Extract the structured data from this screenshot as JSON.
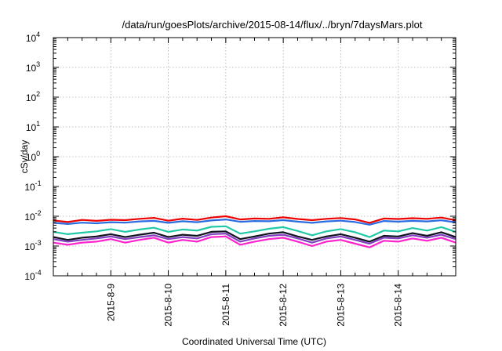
{
  "chart_data": {
    "type": "line",
    "title": "/data/run/goesPlots/archive/2015-08-14/flux/../bryn/7daysMars.plot",
    "xlabel": "Coordinated Universal Time (UTC)",
    "ylabel": "cSv/day",
    "y_scale": "log",
    "ylim": [
      0.0001,
      10000
    ],
    "y_ticks": [
      {
        "base": "10",
        "exp": "-4"
      },
      {
        "base": "10",
        "exp": "-3"
      },
      {
        "base": "10",
        "exp": "-2"
      },
      {
        "base": "10",
        "exp": "-1"
      },
      {
        "base": "10",
        "exp": "0"
      },
      {
        "base": "10",
        "exp": "1"
      },
      {
        "base": "10",
        "exp": "2"
      },
      {
        "base": "10",
        "exp": "3"
      },
      {
        "base": "10",
        "exp": "4"
      }
    ],
    "xlim": [
      "2015-08-08",
      "2015-08-15"
    ],
    "x_ticks": [
      "2015-8-9",
      "2015-8-10",
      "2015-8-11",
      "2015-8-12",
      "2015-8-13",
      "2015-8-14"
    ],
    "grid": true,
    "legend": "none",
    "x": [
      "2015-08-08 00:00",
      "2015-08-08 06:00",
      "2015-08-08 12:00",
      "2015-08-08 18:00",
      "2015-08-09 00:00",
      "2015-08-09 06:00",
      "2015-08-09 12:00",
      "2015-08-09 18:00",
      "2015-08-10 00:00",
      "2015-08-10 06:00",
      "2015-08-10 12:00",
      "2015-08-10 18:00",
      "2015-08-11 00:00",
      "2015-08-11 06:00",
      "2015-08-11 12:00",
      "2015-08-11 18:00",
      "2015-08-12 00:00",
      "2015-08-12 06:00",
      "2015-08-12 12:00",
      "2015-08-12 18:00",
      "2015-08-13 00:00",
      "2015-08-13 06:00",
      "2015-08-13 12:00",
      "2015-08-13 18:00",
      "2015-08-14 00:00",
      "2015-08-14 06:00",
      "2015-08-14 12:00",
      "2015-08-14 18:00",
      "2015-08-15 00:00"
    ],
    "series": [
      {
        "color": "#ee0000",
        "values": [
          0.0072,
          0.0064,
          0.0075,
          0.007,
          0.0076,
          0.0074,
          0.0082,
          0.0088,
          0.0071,
          0.0083,
          0.0075,
          0.009,
          0.01,
          0.0078,
          0.0084,
          0.0082,
          0.0092,
          0.0081,
          0.0074,
          0.0082,
          0.0087,
          0.0078,
          0.006,
          0.0084,
          0.0081,
          0.0086,
          0.0082,
          0.009,
          0.0073
        ]
      },
      {
        "color": "#2a6de0",
        "values": [
          0.006,
          0.0055,
          0.0061,
          0.0058,
          0.0063,
          0.0061,
          0.0067,
          0.007,
          0.006,
          0.0068,
          0.0063,
          0.0072,
          0.0078,
          0.0065,
          0.0069,
          0.0068,
          0.0074,
          0.0066,
          0.006,
          0.0067,
          0.0071,
          0.0064,
          0.0052,
          0.0069,
          0.0066,
          0.007,
          0.0067,
          0.0073,
          0.0062
        ]
      },
      {
        "color": "#22c9a8",
        "values": [
          0.003,
          0.0025,
          0.0028,
          0.0031,
          0.0037,
          0.003,
          0.0036,
          0.0041,
          0.003,
          0.0036,
          0.0033,
          0.0044,
          0.0046,
          0.0026,
          0.0031,
          0.0038,
          0.0043,
          0.0032,
          0.0023,
          0.0031,
          0.0037,
          0.0029,
          0.002,
          0.0033,
          0.0031,
          0.004,
          0.0033,
          0.0043,
          0.003
        ]
      },
      {
        "color": "#111122",
        "values": [
          0.002,
          0.0016,
          0.0019,
          0.0021,
          0.0025,
          0.002,
          0.0024,
          0.0028,
          0.002,
          0.0024,
          0.0022,
          0.003,
          0.0031,
          0.0017,
          0.0021,
          0.0026,
          0.0029,
          0.0021,
          0.0016,
          0.0021,
          0.0025,
          0.0019,
          0.0014,
          0.0022,
          0.0021,
          0.0027,
          0.0022,
          0.0029,
          0.002
        ]
      },
      {
        "color": "#8040c0",
        "values": [
          0.0017,
          0.0014,
          0.0016,
          0.0018,
          0.0021,
          0.0017,
          0.002,
          0.0023,
          0.0017,
          0.002,
          0.0018,
          0.0025,
          0.0026,
          0.0014,
          0.0018,
          0.0022,
          0.0024,
          0.0018,
          0.0013,
          0.0018,
          0.0021,
          0.0016,
          0.0012,
          0.0019,
          0.0018,
          0.0023,
          0.0019,
          0.0024,
          0.0017
        ]
      },
      {
        "color": "#ff22cc",
        "values": [
          0.0013,
          0.0011,
          0.0013,
          0.0014,
          0.0017,
          0.0013,
          0.0016,
          0.0019,
          0.0013,
          0.0016,
          0.0014,
          0.002,
          0.0021,
          0.0011,
          0.0014,
          0.0017,
          0.0019,
          0.0014,
          0.001,
          0.0014,
          0.0016,
          0.0012,
          0.0009,
          0.0015,
          0.0014,
          0.0018,
          0.0015,
          0.0019,
          0.0013
        ]
      }
    ]
  }
}
